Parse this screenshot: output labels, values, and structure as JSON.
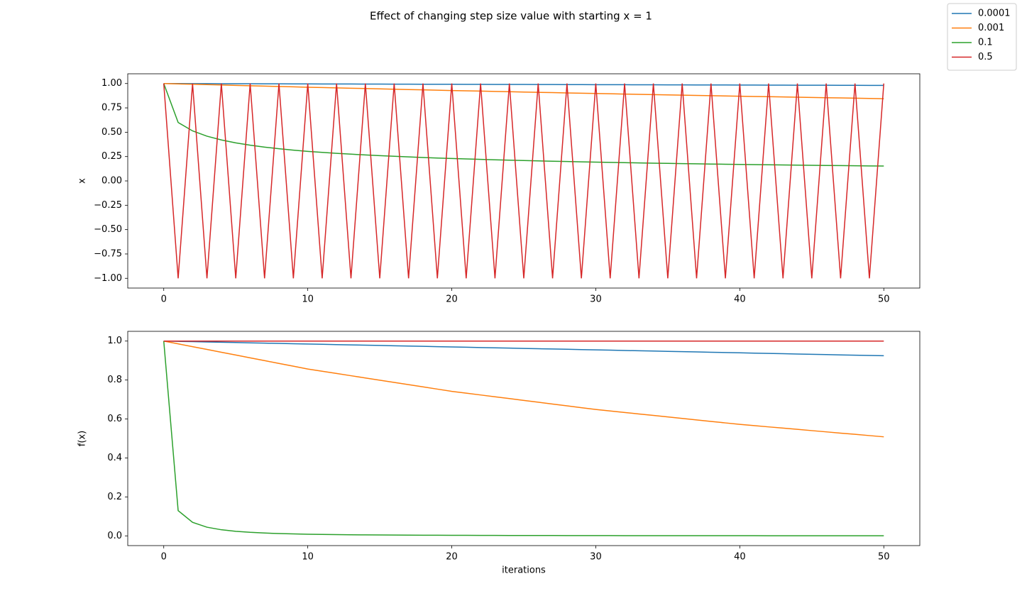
{
  "title": "Effect of changing step size value with starting x = 1",
  "chart_data": [
    {
      "type": "line",
      "ylabel": "x",
      "legend": "upper right",
      "x": [
        0,
        1,
        2,
        3,
        4,
        5,
        6,
        7,
        8,
        9,
        10,
        11,
        12,
        13,
        14,
        15,
        16,
        17,
        18,
        19,
        20,
        21,
        22,
        23,
        24,
        25,
        26,
        27,
        28,
        29,
        30,
        31,
        32,
        33,
        34,
        35,
        36,
        37,
        38,
        39,
        40,
        41,
        42,
        43,
        44,
        45,
        46,
        47,
        48,
        49,
        50
      ],
      "xlim": [
        -2.5,
        52.5
      ],
      "xticks": [
        0,
        10,
        20,
        30,
        40,
        50
      ],
      "ylim": [
        -1.1,
        1.1
      ],
      "yticks": [
        {
          "value": 1,
          "label": "1.00"
        },
        {
          "value": 0.75,
          "label": "0.75"
        },
        {
          "value": 0.5,
          "label": "0.50"
        },
        {
          "value": 0.25,
          "label": "0.25"
        },
        {
          "value": 0,
          "label": "0.00"
        },
        {
          "value": -0.25,
          "label": "−0.25"
        },
        {
          "value": -0.5,
          "label": "−0.50"
        },
        {
          "value": -0.75,
          "label": "−0.75"
        },
        {
          "value": -1,
          "label": "−1.00"
        }
      ],
      "grid": false,
      "series": [
        {
          "name": "0.0001",
          "color": "#1f77b4",
          "values": [
            1,
            0.9996,
            0.9992,
            0.9988,
            0.9984,
            0.9981,
            0.9977,
            0.9973,
            0.9969,
            0.9965,
            0.9961,
            0.9957,
            0.9953,
            0.995,
            0.9946,
            0.9942,
            0.9938,
            0.9934,
            0.993,
            0.9926,
            0.9922,
            0.9919,
            0.9915,
            0.9911,
            0.9907,
            0.9903,
            0.9899,
            0.9895,
            0.9891,
            0.9887,
            0.9884,
            0.988,
            0.9876,
            0.9872,
            0.9868,
            0.9864,
            0.986,
            0.9856,
            0.9853,
            0.9849,
            0.9845,
            0.9841,
            0.9837,
            0.9833,
            0.9829,
            0.9825,
            0.9822,
            0.9818,
            0.9814,
            0.981,
            0.9806
          ]
        },
        {
          "name": "0.001",
          "color": "#ff7f0e",
          "values": [
            1,
            0.9962,
            0.9924,
            0.9886,
            0.9848,
            0.981,
            0.9772,
            0.9734,
            0.9696,
            0.9658,
            0.962,
            0.9586,
            0.9552,
            0.9518,
            0.9484,
            0.9451,
            0.9417,
            0.9383,
            0.9349,
            0.9315,
            0.9281,
            0.925,
            0.922,
            0.9189,
            0.9159,
            0.9128,
            0.9097,
            0.9067,
            0.9036,
            0.9006,
            0.8975,
            0.8947,
            0.8919,
            0.8892,
            0.8864,
            0.8836,
            0.8808,
            0.878,
            0.8753,
            0.8725,
            0.8697,
            0.8672,
            0.8646,
            0.8621,
            0.8596,
            0.8571,
            0.8545,
            0.852,
            0.8495,
            0.8469,
            0.8444
          ]
        },
        {
          "name": "0.1",
          "color": "#2ca02c",
          "values": [
            1,
            0.6,
            0.5136,
            0.4594,
            0.4206,
            0.3909,
            0.367,
            0.3472,
            0.3305,
            0.3161,
            0.3034,
            0.2929,
            0.2833,
            0.2746,
            0.2667,
            0.2594,
            0.2527,
            0.2465,
            0.2407,
            0.2353,
            0.2303,
            0.2255,
            0.2211,
            0.2169,
            0.2129,
            0.2092,
            0.2056,
            0.2022,
            0.199,
            0.1959,
            0.193,
            0.1901,
            0.1874,
            0.1849,
            0.1824,
            0.18,
            0.1777,
            0.1755,
            0.1734,
            0.1713,
            0.1694,
            0.1675,
            0.1656,
            0.1638,
            0.1621,
            0.1604,
            0.1588,
            0.1572,
            0.1557,
            0.1542,
            0.1527
          ]
        },
        {
          "name": "0.5",
          "color": "#d62728",
          "values": [
            1,
            -1,
            1,
            -1,
            1,
            -1,
            1,
            -1,
            1,
            -1,
            1,
            -1,
            1,
            -1,
            1,
            -1,
            1,
            -1,
            1,
            -1,
            1,
            -1,
            1,
            -1,
            1,
            -1,
            1,
            -1,
            1,
            -1,
            1,
            -1,
            1,
            -1,
            1,
            -1,
            1,
            -1,
            1,
            -1,
            1,
            -1,
            1,
            -1,
            1,
            -1,
            1,
            -1,
            1,
            -1,
            1
          ]
        }
      ]
    },
    {
      "type": "line",
      "ylabel": "f(x)",
      "xlabel": "iterations",
      "x": [
        0,
        1,
        2,
        3,
        4,
        5,
        6,
        7,
        8,
        9,
        10,
        11,
        12,
        13,
        14,
        15,
        16,
        17,
        18,
        19,
        20,
        21,
        22,
        23,
        24,
        25,
        26,
        27,
        28,
        29,
        30,
        31,
        32,
        33,
        34,
        35,
        36,
        37,
        38,
        39,
        40,
        41,
        42,
        43,
        44,
        45,
        46,
        47,
        48,
        49,
        50
      ],
      "xlim": [
        -2.5,
        52.5
      ],
      "xticks": [
        0,
        10,
        20,
        30,
        40,
        50
      ],
      "ylim": [
        -0.05,
        1.05
      ],
      "yticks": [
        {
          "value": 0,
          "label": "0.0"
        },
        {
          "value": 0.2,
          "label": "0.2"
        },
        {
          "value": 0.4,
          "label": "0.4"
        },
        {
          "value": 0.6,
          "label": "0.6"
        },
        {
          "value": 0.8,
          "label": "0.8"
        },
        {
          "value": 1,
          "label": "1.0"
        }
      ],
      "grid": false,
      "series": [
        {
          "name": "0.0001",
          "color": "#1f77b4",
          "values": [
            1,
            0.9985,
            0.997,
            0.9955,
            0.994,
            0.9925,
            0.991,
            0.9894,
            0.9879,
            0.9864,
            0.9849,
            0.9834,
            0.9819,
            0.9804,
            0.9789,
            0.9774,
            0.9759,
            0.9744,
            0.9729,
            0.9713,
            0.9698,
            0.9683,
            0.9668,
            0.9653,
            0.9638,
            0.9623,
            0.9608,
            0.9593,
            0.9578,
            0.9563,
            0.9548,
            0.9533,
            0.9517,
            0.9502,
            0.9487,
            0.9472,
            0.9457,
            0.9442,
            0.9427,
            0.9412,
            0.9397,
            0.9382,
            0.9367,
            0.9352,
            0.9336,
            0.9321,
            0.9306,
            0.9291,
            0.9276,
            0.9261,
            0.9246
          ]
        },
        {
          "name": "0.001",
          "color": "#ff7f0e",
          "values": [
            1,
            0.9857,
            0.9713,
            0.957,
            0.9426,
            0.9283,
            0.9139,
            0.8996,
            0.8852,
            0.8709,
            0.8565,
            0.845,
            0.8336,
            0.8221,
            0.8107,
            0.7992,
            0.7877,
            0.7763,
            0.7648,
            0.7534,
            0.7419,
            0.7326,
            0.7233,
            0.714,
            0.7047,
            0.6954,
            0.686,
            0.6767,
            0.6674,
            0.6581,
            0.6488,
            0.6411,
            0.6335,
            0.6258,
            0.6182,
            0.6105,
            0.6028,
            0.5952,
            0.5875,
            0.5799,
            0.5722,
            0.5658,
            0.5594,
            0.5531,
            0.5467,
            0.5403,
            0.5339,
            0.5275,
            0.5212,
            0.5148,
            0.5084
          ]
        },
        {
          "name": "0.1",
          "color": "#2ca02c",
          "values": [
            1,
            0.1296,
            0.0696,
            0.0445,
            0.0313,
            0.0234,
            0.0181,
            0.0145,
            0.0119,
            0.01,
            0.00848,
            0.00736,
            0.00644,
            0.00569,
            0.00506,
            0.00453,
            0.00408,
            0.00369,
            0.00336,
            0.00307,
            0.00281,
            0.00259,
            0.00239,
            0.00221,
            0.00206,
            0.00191,
            0.00179,
            0.00167,
            0.00157,
            0.00147,
            0.00139,
            0.00131,
            0.00123,
            0.00117,
            0.00111,
            0.00105,
            0.001,
            0.00095,
            0.0009,
            0.00086,
            0.00082,
            0.00079,
            0.00075,
            0.00072,
            0.00069,
            0.00066,
            0.00064,
            0.00061,
            0.00059,
            0.00057,
            0.00054
          ]
        },
        {
          "name": "0.5",
          "color": "#d62728",
          "values": [
            1,
            1,
            1,
            1,
            1,
            1,
            1,
            1,
            1,
            1,
            1,
            1,
            1,
            1,
            1,
            1,
            1,
            1,
            1,
            1,
            1,
            1,
            1,
            1,
            1,
            1,
            1,
            1,
            1,
            1,
            1,
            1,
            1,
            1,
            1,
            1,
            1,
            1,
            1,
            1,
            1,
            1,
            1,
            1,
            1,
            1,
            1,
            1,
            1,
            1,
            1
          ]
        }
      ]
    }
  ]
}
